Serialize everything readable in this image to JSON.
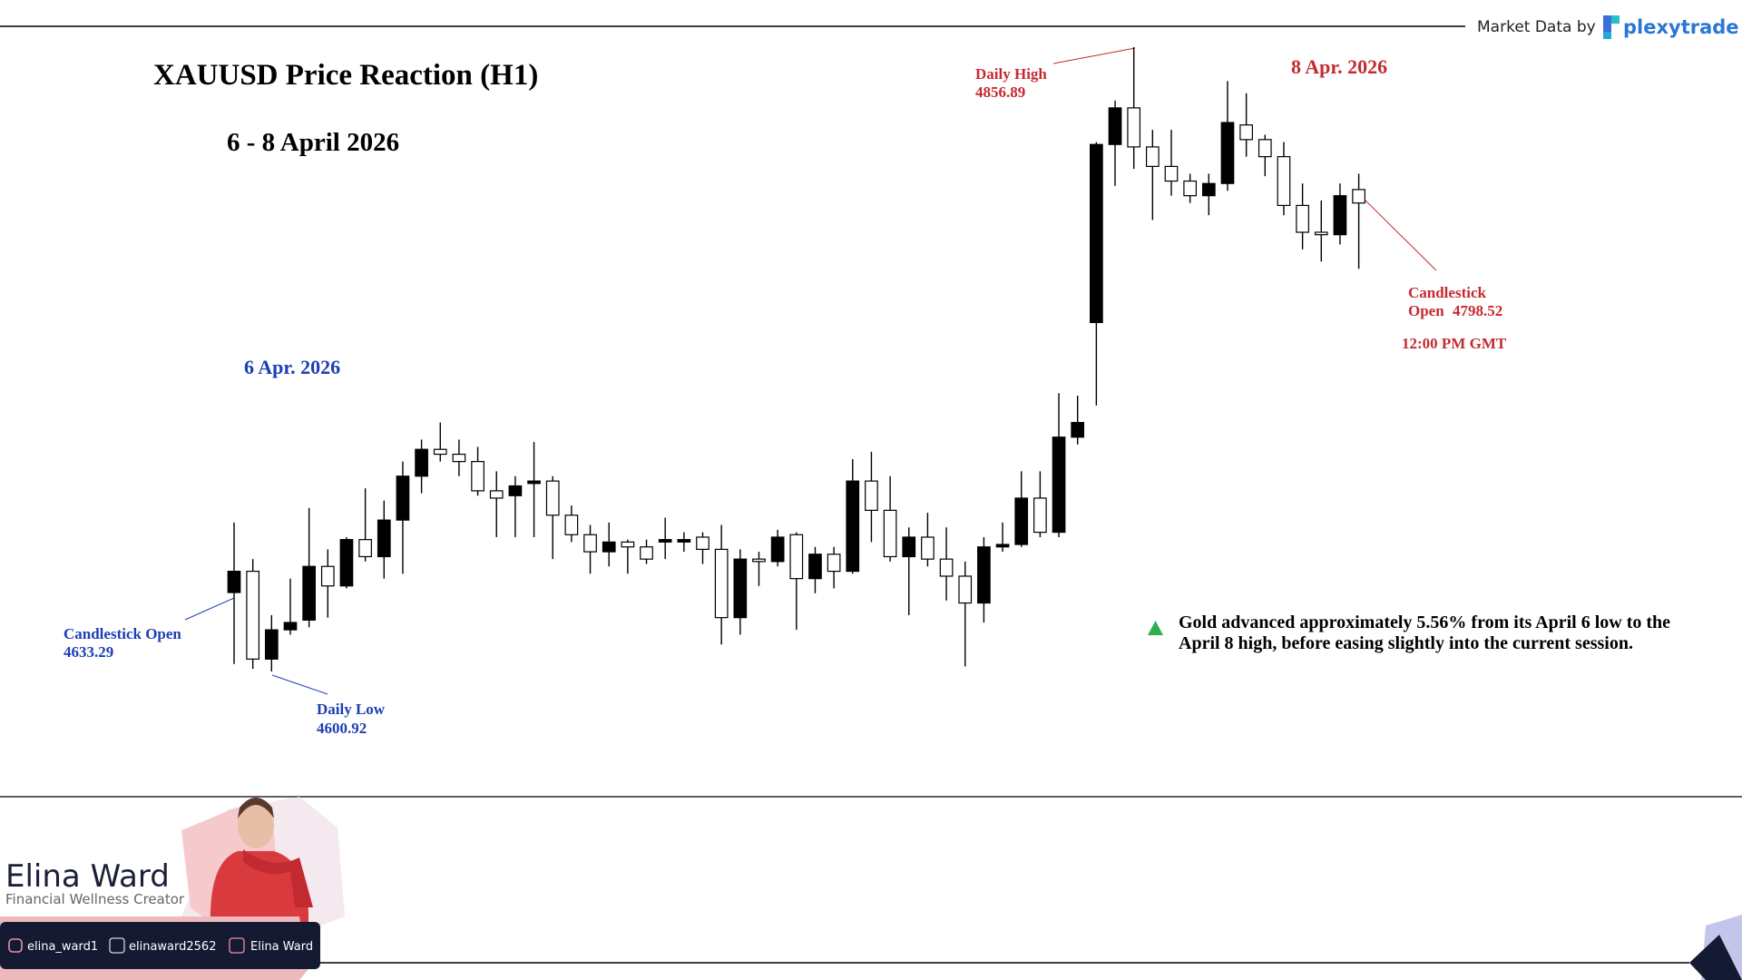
{
  "header": {
    "credit": "Market Data by",
    "brand": "plexytrade"
  },
  "chart_data": {
    "type": "candlestick",
    "title": "XAUUSD Price Reaction (H1)",
    "subtitle": "6 - 8 April 2026",
    "day_label_left": "6 Apr. 2026",
    "day_label_right": "8 Apr. 2026",
    "daily_high_label": "Daily High",
    "daily_low_label": "Daily Low",
    "open_label_left": "Candlestick Open",
    "open_label_right": [
      "Candlestick",
      "Open"
    ],
    "time_label": "12:00 PM GMT",
    "note": [
      "Gold advanced approximately 5.56% from its April 6 low to the",
      "April 8 high, before easing slightly into the current session."
    ],
    "up_color": "#000000",
    "down_color": "#ffffff",
    "open": [
      4633.29,
      4642,
      4606,
      4618,
      4622,
      4644,
      4636,
      4655,
      4648,
      4663,
      4681,
      4692,
      4690,
      4687,
      4675,
      4673,
      4678,
      4679,
      4665,
      4657,
      4650,
      4654,
      4652,
      4654,
      4654,
      4656,
      4651,
      4623,
      4647,
      4646,
      4657,
      4639,
      4649,
      4642,
      4679,
      4667,
      4648,
      4656,
      4647,
      4640,
      4629,
      4652,
      4653,
      4672,
      4658,
      4697,
      4744,
      4817,
      4832,
      4816,
      4808,
      4802,
      4796,
      4801,
      4825,
      4819,
      4812,
      4792,
      4781,
      4780,
      4798.52
    ],
    "high": [
      4662,
      4647,
      4624,
      4639,
      4668,
      4651,
      4656,
      4676,
      4671,
      4687,
      4696,
      4703,
      4696,
      4693,
      4683,
      4681,
      4695,
      4681,
      4669,
      4661,
      4662,
      4655,
      4655,
      4664,
      4658,
      4658,
      4661,
      4651,
      4650,
      4659,
      4658,
      4652,
      4652,
      4688,
      4691,
      4681,
      4660,
      4666,
      4660,
      4646,
      4656,
      4662,
      4683,
      4683,
      4715,
      4714,
      4818,
      4835,
      4856.89,
      4823,
      4823,
      4805,
      4805,
      4843,
      4838,
      4821,
      4818,
      4801,
      4794,
      4801,
      4805
    ],
    "low": [
      4604,
      4602,
      4600.92,
      4616,
      4619,
      4623,
      4635,
      4646,
      4639,
      4641,
      4674,
      4687,
      4681,
      4673,
      4656,
      4656,
      4656,
      4647,
      4654,
      4641,
      4644,
      4641,
      4645,
      4647,
      4650,
      4645,
      4612,
      4616,
      4636,
      4644,
      4618,
      4633,
      4635,
      4641,
      4654,
      4646,
      4624,
      4644,
      4630,
      4603,
      4621,
      4650,
      4652,
      4656,
      4656,
      4694,
      4710,
      4800,
      4807,
      4786,
      4796,
      4793,
      4788,
      4798,
      4812,
      4804,
      4788,
      4774,
      4769,
      4776,
      4766
    ],
    "close": [
      4642,
      4606,
      4618,
      4621,
      4644,
      4636,
      4655,
      4648,
      4663,
      4681,
      4692,
      4690,
      4687,
      4675,
      4672,
      4677,
      4679,
      4665,
      4657,
      4650,
      4654,
      4652,
      4647,
      4655,
      4655,
      4651,
      4623,
      4647,
      4646,
      4656,
      4639,
      4649,
      4642,
      4679,
      4667,
      4648,
      4656,
      4647,
      4640,
      4629,
      4652,
      4653,
      4672,
      4658,
      4697,
      4703,
      4817,
      4832,
      4816,
      4808,
      4802,
      4796,
      4801,
      4826,
      4819,
      4812,
      4792,
      4781,
      4780,
      4796,
      4793
    ]
  },
  "footer": {
    "name": "Elina Ward",
    "role": "Financial Wellness Creator",
    "socials": [
      "elina_ward1",
      "elinaward2562",
      "Elina Ward"
    ]
  }
}
